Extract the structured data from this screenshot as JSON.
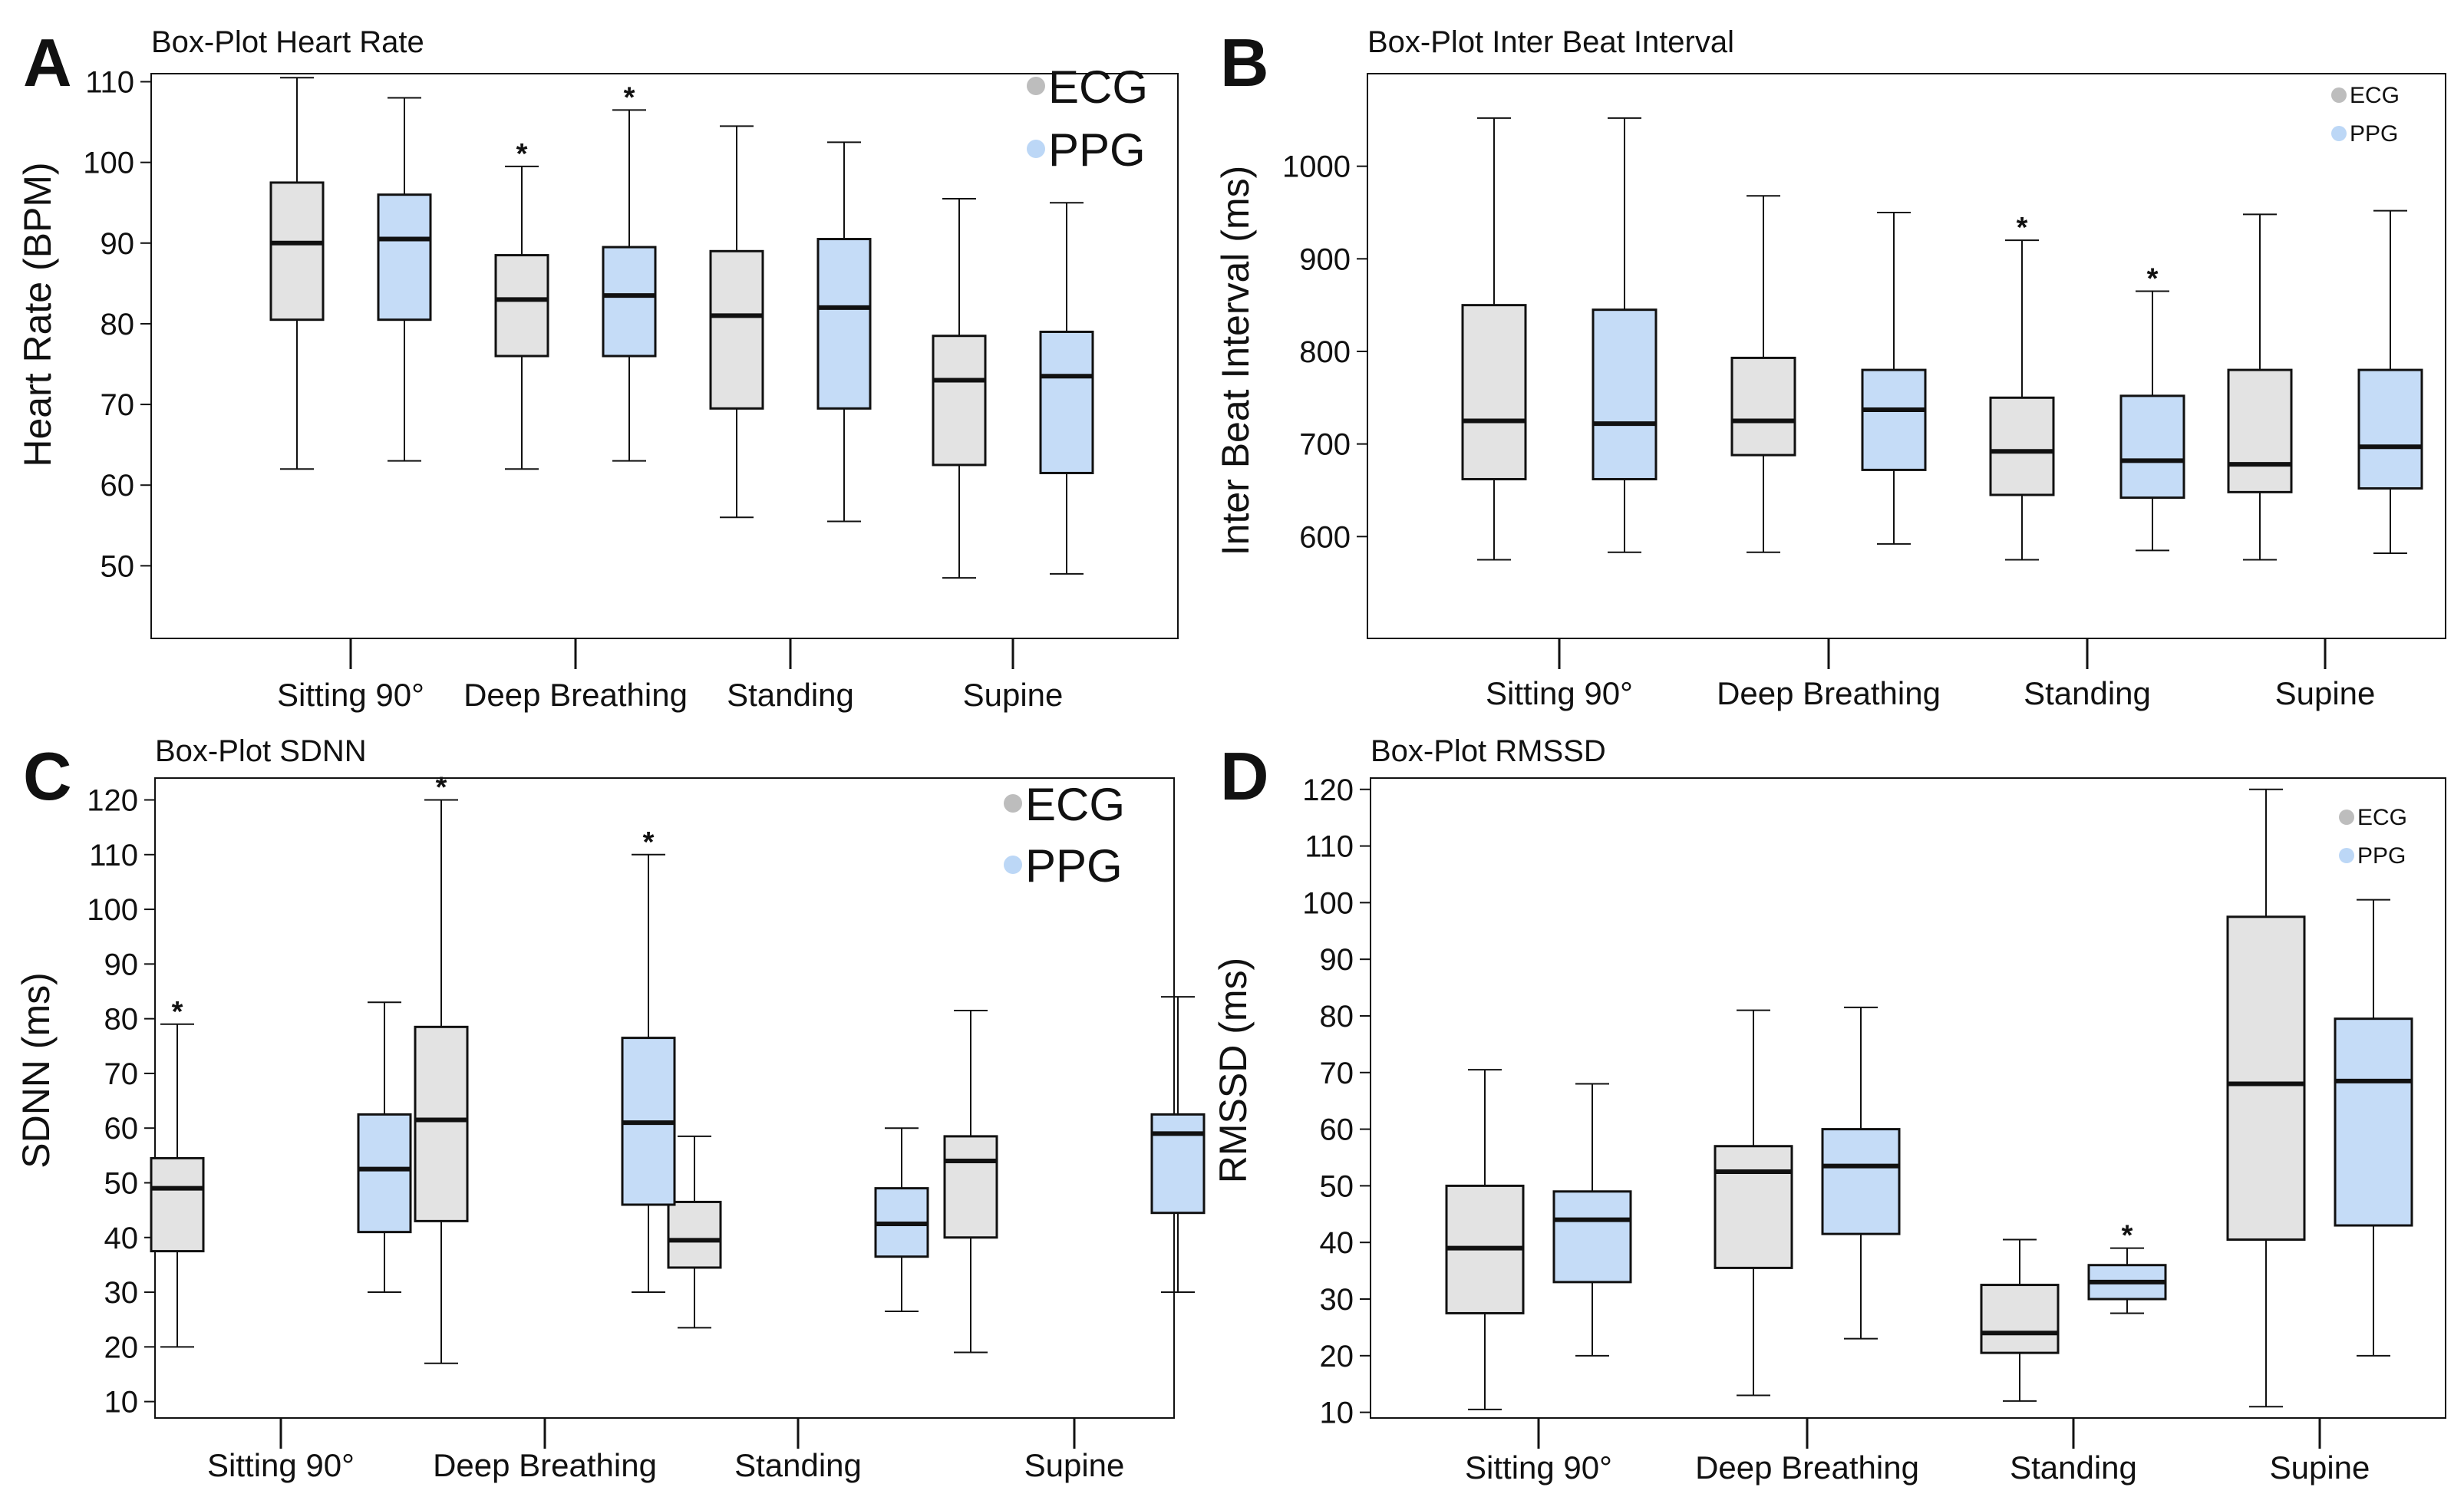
{
  "figure": {
    "colors": {
      "ECG": "#e3e3e3",
      "PPG": "#c5dcf7",
      "stroke": "#111111",
      "legend_ECG": "#bdbdbd",
      "legend_PPG": "#bcd7f6"
    }
  },
  "chart_data": [
    {
      "panel": "A",
      "type": "box",
      "title": "Box-Plot Heart Rate",
      "ylabel": "Heart Rate  (BPM)",
      "xlabel": "",
      "categories": [
        "Sitting 90°",
        "Deep Breathing",
        "Standing",
        "Supine"
      ],
      "y_ticks": [
        50,
        60,
        70,
        80,
        90,
        100,
        110
      ],
      "ylim": [
        41,
        111
      ],
      "legend": {
        "labels": [
          "ECG",
          "PPG"
        ],
        "position": "top-right",
        "size": "big"
      },
      "series": [
        {
          "name": "ECG",
          "boxes": [
            {
              "whisker_low": 62,
              "q1": 80.5,
              "median": 90,
              "q3": 97.5,
              "whisker_high": 110.5,
              "outlier_marker": ""
            },
            {
              "whisker_low": 62,
              "q1": 76,
              "median": 83,
              "q3": 88.5,
              "whisker_high": 99.5,
              "outlier_marker": "*"
            },
            {
              "whisker_low": 56,
              "q1": 69.5,
              "median": 81,
              "q3": 89,
              "whisker_high": 104.5,
              "outlier_marker": ""
            },
            {
              "whisker_low": 48.5,
              "q1": 62.5,
              "median": 73,
              "q3": 78.5,
              "whisker_high": 95.5,
              "outlier_marker": ""
            }
          ]
        },
        {
          "name": "PPG",
          "boxes": [
            {
              "whisker_low": 63,
              "q1": 80.5,
              "median": 90.5,
              "q3": 96,
              "whisker_high": 108,
              "outlier_marker": ""
            },
            {
              "whisker_low": 63,
              "q1": 76,
              "median": 83.5,
              "q3": 89.5,
              "whisker_high": 106.5,
              "outlier_marker": "*"
            },
            {
              "whisker_low": 55.5,
              "q1": 69.5,
              "median": 82,
              "q3": 90.5,
              "whisker_high": 102.5,
              "outlier_marker": ""
            },
            {
              "whisker_low": 49,
              "q1": 61.5,
              "median": 73.5,
              "q3": 79,
              "whisker_high": 95,
              "outlier_marker": ""
            }
          ]
        }
      ]
    },
    {
      "panel": "B",
      "type": "box",
      "title": "Box-Plot Inter Beat Interval",
      "ylabel": "Inter Beat Interval  (ms)",
      "xlabel": "",
      "categories": [
        "Sitting 90°",
        "Deep Breathing",
        "Standing",
        "Supine"
      ],
      "y_ticks": [
        600,
        700,
        800,
        900,
        1000
      ],
      "ylim": [
        490,
        1100
      ],
      "legend": {
        "labels": [
          "ECG",
          "PPG"
        ],
        "position": "top-right",
        "size": "small"
      },
      "series": [
        {
          "name": "ECG",
          "boxes": [
            {
              "whisker_low": 575,
              "q1": 662,
              "median": 725,
              "q3": 850,
              "whisker_high": 1052,
              "outlier_marker": ""
            },
            {
              "whisker_low": 583,
              "q1": 688,
              "median": 725,
              "q3": 793,
              "whisker_high": 968,
              "outlier_marker": ""
            },
            {
              "whisker_low": 575,
              "q1": 645,
              "median": 692,
              "q3": 750,
              "whisker_high": 920,
              "outlier_marker": "*"
            },
            {
              "whisker_low": 575,
              "q1": 648,
              "median": 678,
              "q3": 780,
              "whisker_high": 948,
              "outlier_marker": ""
            }
          ]
        },
        {
          "name": "PPG",
          "boxes": [
            {
              "whisker_low": 583,
              "q1": 662,
              "median": 722,
              "q3": 845,
              "whisker_high": 1052,
              "outlier_marker": ""
            },
            {
              "whisker_low": 592,
              "q1": 672,
              "median": 737,
              "q3": 780,
              "whisker_high": 950,
              "outlier_marker": ""
            },
            {
              "whisker_low": 585,
              "q1": 642,
              "median": 682,
              "q3": 752,
              "whisker_high": 865,
              "outlier_marker": "*"
            },
            {
              "whisker_low": 582,
              "q1": 652,
              "median": 697,
              "q3": 780,
              "whisker_high": 952,
              "outlier_marker": ""
            }
          ]
        }
      ]
    },
    {
      "panel": "C",
      "type": "box",
      "title": "Box-Plot SDNN",
      "ylabel": "SDNN  (ms)",
      "xlabel": "",
      "categories": [
        "Sitting 90°",
        "Deep Breathing",
        "Standing",
        "Supine"
      ],
      "y_ticks": [
        10,
        20,
        30,
        40,
        50,
        60,
        70,
        80,
        90,
        100,
        110,
        120
      ],
      "ylim": [
        7,
        124
      ],
      "legend": {
        "labels": [
          "ECG",
          "PPG"
        ],
        "position": "top-right",
        "size": "big"
      },
      "series": [
        {
          "name": "ECG",
          "boxes": [
            {
              "whisker_low": 20,
              "q1": 37.5,
              "median": 49,
              "q3": 54.5,
              "whisker_high": 79,
              "outlier_marker": "*"
            },
            {
              "whisker_low": 17,
              "q1": 43,
              "median": 61.5,
              "q3": 78.5,
              "whisker_high": 120,
              "outlier_marker": "*"
            },
            {
              "whisker_low": 23.5,
              "q1": 34.5,
              "median": 39.5,
              "q3": 46.5,
              "whisker_high": 58.5,
              "outlier_marker": ""
            },
            {
              "whisker_low": 19,
              "q1": 40,
              "median": 54,
              "q3": 58.5,
              "whisker_high": 81.5,
              "outlier_marker": ""
            }
          ]
        },
        {
          "name": "PPG",
          "boxes": [
            {
              "whisker_low": 30,
              "q1": 41,
              "median": 52.5,
              "q3": 62.5,
              "whisker_high": 83,
              "outlier_marker": ""
            },
            {
              "whisker_low": 30,
              "q1": 46,
              "median": 61,
              "q3": 76.5,
              "whisker_high": 110,
              "outlier_marker": "*"
            },
            {
              "whisker_low": 26.5,
              "q1": 36.5,
              "median": 42.5,
              "q3": 49,
              "whisker_high": 60,
              "outlier_marker": ""
            },
            {
              "whisker_low": 30,
              "q1": 44.5,
              "median": 59,
              "q3": 62.5,
              "whisker_high": 84,
              "outlier_marker": ""
            }
          ]
        }
      ]
    },
    {
      "panel": "D",
      "type": "box",
      "title": "Box-Plot RMSSD",
      "ylabel": "RMSSD  (ms)",
      "xlabel": "",
      "categories": [
        "Sitting 90°",
        "Deep Breathing",
        "Standing",
        "Supine"
      ],
      "y_ticks": [
        10,
        20,
        30,
        40,
        50,
        60,
        70,
        80,
        90,
        100,
        110,
        120
      ],
      "ylim": [
        9,
        122
      ],
      "legend": {
        "labels": [
          "ECG",
          "PPG"
        ],
        "position": "top-right",
        "size": "small"
      },
      "series": [
        {
          "name": "ECG",
          "boxes": [
            {
              "whisker_low": 10.5,
              "q1": 27.5,
              "median": 39,
              "q3": 50,
              "whisker_high": 70.5,
              "outlier_marker": ""
            },
            {
              "whisker_low": 13,
              "q1": 35.5,
              "median": 52.5,
              "q3": 57,
              "whisker_high": 81,
              "outlier_marker": ""
            },
            {
              "whisker_low": 12,
              "q1": 20.5,
              "median": 24,
              "q3": 32.5,
              "whisker_high": 40.5,
              "outlier_marker": ""
            },
            {
              "whisker_low": 11,
              "q1": 40.5,
              "median": 68,
              "q3": 97.5,
              "whisker_high": 120,
              "outlier_marker": ""
            }
          ]
        },
        {
          "name": "PPG",
          "boxes": [
            {
              "whisker_low": 20,
              "q1": 33,
              "median": 44,
              "q3": 49,
              "whisker_high": 68,
              "outlier_marker": ""
            },
            {
              "whisker_low": 23,
              "q1": 41.5,
              "median": 53.5,
              "q3": 60,
              "whisker_high": 81.5,
              "outlier_marker": ""
            },
            {
              "whisker_low": 27.5,
              "q1": 30,
              "median": 33,
              "q3": 36,
              "whisker_high": 39,
              "outlier_marker": "*"
            },
            {
              "whisker_low": 20,
              "q1": 43,
              "median": 68.5,
              "q3": 79.5,
              "whisker_high": 100.5,
              "outlier_marker": ""
            }
          ]
        }
      ]
    }
  ]
}
